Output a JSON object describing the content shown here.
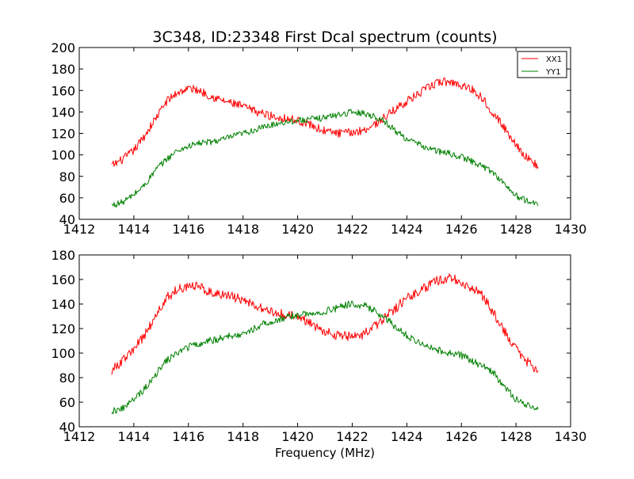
{
  "figure": {
    "title": "3C348, ID:23348 First Dcal spectrum (counts)",
    "xlabel": "Frequency (MHz)"
  },
  "colors": {
    "XX1": "#ff0000",
    "YY1": "#008000"
  },
  "chart_data": [
    {
      "type": "line",
      "title": "3C348, ID:23348 First Dcal spectrum (counts)",
      "xlabel": "",
      "ylabel": "",
      "xlim": [
        1412,
        1430
      ],
      "ylim": [
        40,
        200
      ],
      "xticks": [
        1412,
        1414,
        1416,
        1418,
        1420,
        1422,
        1424,
        1426,
        1428,
        1430
      ],
      "yticks": [
        40,
        60,
        80,
        100,
        120,
        140,
        160,
        180,
        200
      ],
      "grid": false,
      "legend": {
        "position": "top-right",
        "entries": [
          "XX1",
          "YY1"
        ]
      },
      "x": [
        1413.2,
        1413.6,
        1414.0,
        1414.4,
        1414.8,
        1415.2,
        1415.6,
        1416.0,
        1416.4,
        1416.8,
        1417.2,
        1417.6,
        1418.0,
        1418.4,
        1418.8,
        1419.2,
        1419.6,
        1420.0,
        1420.4,
        1420.8,
        1421.2,
        1421.6,
        1422.0,
        1422.4,
        1422.8,
        1423.2,
        1423.6,
        1424.0,
        1424.4,
        1424.8,
        1425.2,
        1425.6,
        1426.0,
        1426.4,
        1426.8,
        1427.2,
        1427.6,
        1428.0,
        1428.4,
        1428.8
      ],
      "series": [
        {
          "name": "XX1",
          "color": "#ff0000",
          "noise": 4.0,
          "values": [
            90,
            96,
            104,
            118,
            134,
            150,
            158,
            162,
            160,
            155,
            151,
            148,
            145,
            141,
            138,
            135,
            134,
            132,
            129,
            124,
            121,
            120,
            121,
            123,
            128,
            135,
            143,
            150,
            156,
            163,
            168,
            168,
            165,
            161,
            152,
            138,
            124,
            110,
            97,
            90
          ]
        },
        {
          "name": "YY1",
          "color": "#008000",
          "noise": 3.0,
          "values": [
            53,
            56,
            63,
            72,
            86,
            96,
            104,
            108,
            111,
            112,
            114,
            117,
            120,
            123,
            126,
            129,
            131,
            132,
            133,
            134,
            136,
            138,
            140,
            139,
            136,
            131,
            122,
            115,
            110,
            106,
            103,
            101,
            98,
            94,
            89,
            83,
            72,
            62,
            57,
            54
          ]
        }
      ]
    },
    {
      "type": "line",
      "title": "",
      "xlabel": "Frequency (MHz)",
      "ylabel": "",
      "xlim": [
        1412,
        1430
      ],
      "ylim": [
        40,
        180
      ],
      "xticks": [
        1412,
        1414,
        1416,
        1418,
        1420,
        1422,
        1424,
        1426,
        1428,
        1430
      ],
      "yticks": [
        40,
        60,
        80,
        100,
        120,
        140,
        160,
        180
      ],
      "grid": false,
      "legend": null,
      "x": [
        1413.2,
        1413.6,
        1414.0,
        1414.4,
        1414.8,
        1415.2,
        1415.6,
        1416.0,
        1416.4,
        1416.8,
        1417.2,
        1417.6,
        1418.0,
        1418.4,
        1418.8,
        1419.2,
        1419.6,
        1420.0,
        1420.4,
        1420.8,
        1421.2,
        1421.6,
        1422.0,
        1422.4,
        1422.8,
        1423.2,
        1423.6,
        1424.0,
        1424.4,
        1424.8,
        1425.2,
        1425.6,
        1426.0,
        1426.4,
        1426.8,
        1427.2,
        1427.6,
        1428.0,
        1428.4,
        1428.8
      ],
      "series": [
        {
          "name": "XX1",
          "color": "#ff0000",
          "noise": 4.0,
          "values": [
            86,
            94,
            103,
            115,
            130,
            145,
            152,
            155,
            154,
            150,
            148,
            146,
            143,
            139,
            135,
            133,
            131,
            129,
            126,
            120,
            116,
            114,
            113,
            115,
            121,
            129,
            137,
            145,
            150,
            155,
            160,
            161,
            158,
            153,
            146,
            132,
            117,
            104,
            93,
            86
          ]
        },
        {
          "name": "YY1",
          "color": "#008000",
          "noise": 3.0,
          "values": [
            53,
            55,
            62,
            71,
            83,
            94,
            100,
            105,
            108,
            110,
            112,
            114,
            116,
            120,
            124,
            127,
            129,
            131,
            132,
            133,
            135,
            138,
            140,
            139,
            135,
            129,
            121,
            114,
            110,
            106,
            102,
            100,
            98,
            94,
            89,
            83,
            72,
            62,
            57,
            55
          ]
        }
      ]
    }
  ]
}
